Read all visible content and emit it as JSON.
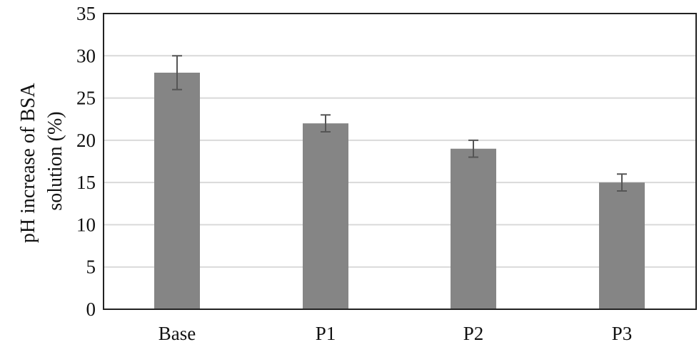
{
  "chart_data": {
    "type": "bar",
    "title": "",
    "xlabel": "",
    "ylabel": "pH increase of BSA solution (%)",
    "ylabel_lines": [
      "pH increase of BSA",
      "solution (%)"
    ],
    "categories": [
      "Base",
      "P1",
      "P2",
      "P3"
    ],
    "values": [
      28,
      22,
      19,
      15
    ],
    "error": [
      2,
      1,
      1,
      1
    ],
    "ylim": [
      0,
      35
    ],
    "yticks": [
      0,
      5,
      10,
      15,
      20,
      25,
      30,
      35
    ],
    "grid": true,
    "legend": null,
    "colors": {
      "bar": "#858585",
      "error": "#555555",
      "grid": "#d9d9d9",
      "frame": "#222222"
    }
  }
}
